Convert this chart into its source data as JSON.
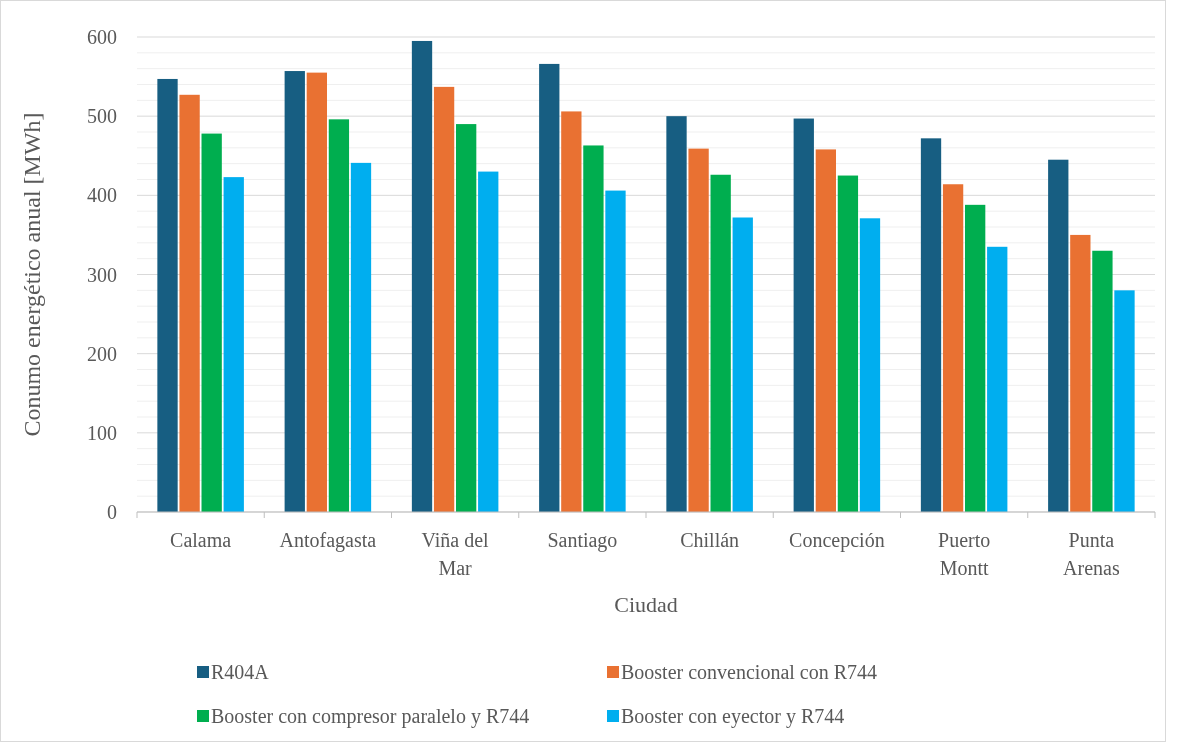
{
  "chart_data": {
    "type": "bar",
    "xlabel": "Ciudad",
    "ylabel": "Conumo energético anual [MWh]",
    "categories": [
      "Calama",
      "Antofagasta",
      "Viña del Mar",
      "Santiago",
      "Chillán",
      "Concepción",
      "Puerto Montt",
      "Punta Arenas"
    ],
    "series": [
      {
        "name": "R404A",
        "color": "#175e82",
        "values": [
          547,
          557,
          595,
          566,
          500,
          497,
          472,
          445
        ]
      },
      {
        "name": "Booster convencional con R744",
        "color": "#e97132",
        "values": [
          527,
          555,
          537,
          506,
          459,
          458,
          414,
          350
        ]
      },
      {
        "name": "Booster con compresor paralelo y R744",
        "color": "#00ae4f",
        "values": [
          478,
          496,
          490,
          463,
          426,
          425,
          388,
          330
        ]
      },
      {
        "name": "Booster con eyector y R744",
        "color": "#00aeef",
        "values": [
          423,
          441,
          430,
          406,
          372,
          371,
          335,
          280
        ]
      }
    ],
    "ylim": [
      0,
      600
    ],
    "yticks": [
      0,
      {
        "value": 20,
        "label": null
      },
      {
        "value": 40,
        "label": null
      },
      {
        "value": 60,
        "label": null
      },
      {
        "value": 80,
        "label": null
      },
      100,
      {
        "value": 120,
        "label": null
      },
      {
        "value": 140,
        "label": null
      },
      {
        "value": 160,
        "label": null
      },
      {
        "value": 180,
        "label": null
      },
      200,
      {
        "value": 220,
        "label": null
      },
      {
        "value": 240,
        "label": null
      },
      {
        "value": 260,
        "label": null
      },
      {
        "value": 280,
        "label": null
      },
      300,
      {
        "value": 320,
        "label": null
      },
      {
        "value": 340,
        "label": null
      },
      {
        "value": 360,
        "label": null
      },
      {
        "value": 380,
        "label": null
      },
      400,
      {
        "value": 420,
        "label": null
      },
      {
        "value": 440,
        "label": null
      },
      {
        "value": 460,
        "label": null
      },
      {
        "value": 480,
        "label": null
      },
      500,
      {
        "value": 520,
        "label": null
      },
      {
        "value": 540,
        "label": null
      },
      {
        "value": 560,
        "label": null
      },
      {
        "value": 580,
        "label": null
      },
      600
    ],
    "grid": "y",
    "legend": "bottom"
  }
}
